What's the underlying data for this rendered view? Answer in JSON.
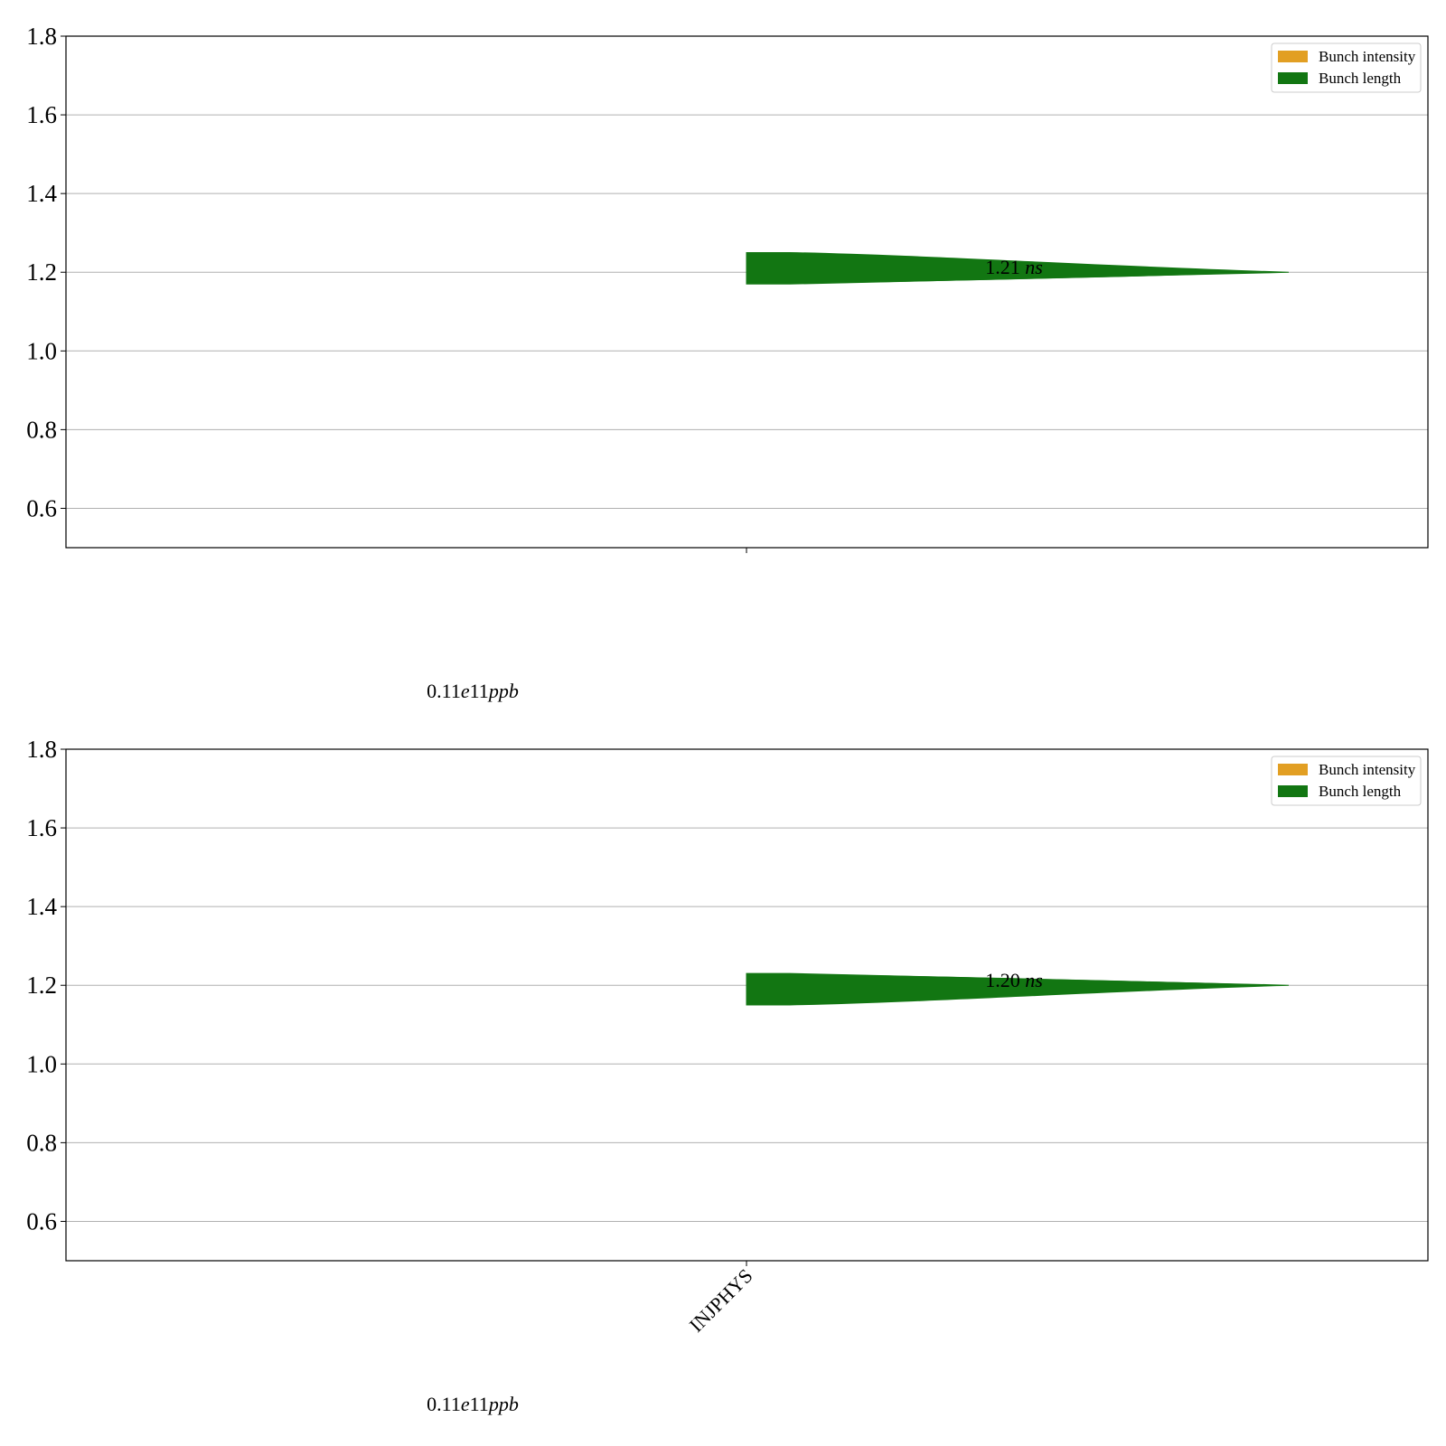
{
  "chart_data": [
    {
      "type": "violin",
      "title": "",
      "xlabel": "",
      "ylabel": "",
      "ylim": [
        0.5,
        1.8
      ],
      "yticks": [
        0.6,
        0.8,
        1.0,
        1.2,
        1.4,
        1.6,
        1.8
      ],
      "grid": true,
      "legend": {
        "placement": "top-right",
        "entries": [
          {
            "name": "Bunch intensity",
            "color": "#e29f23"
          },
          {
            "name": "Bunch length",
            "color": "#127612"
          }
        ]
      },
      "categories": [
        ""
      ],
      "series": [
        {
          "name": "Bunch length",
          "color": "#127612",
          "side": "right",
          "y_min": 1.17,
          "y_max": 1.25,
          "y_peak": 1.2,
          "label": "1.21 ns"
        }
      ],
      "intensity_annotation": "0.11e11ppb"
    },
    {
      "type": "violin",
      "title": "",
      "xlabel": "",
      "ylabel": "",
      "ylim": [
        0.5,
        1.8
      ],
      "yticks": [
        0.6,
        0.8,
        1.0,
        1.2,
        1.4,
        1.6,
        1.8
      ],
      "grid": true,
      "legend": {
        "placement": "top-right",
        "entries": [
          {
            "name": "Bunch intensity",
            "color": "#e29f23"
          },
          {
            "name": "Bunch length",
            "color": "#127612"
          }
        ]
      },
      "categories": [
        "INJPHYS"
      ],
      "series": [
        {
          "name": "Bunch length",
          "color": "#127612",
          "side": "right",
          "y_min": 1.15,
          "y_max": 1.23,
          "y_peak": 1.2,
          "label": "1.20 ns"
        }
      ],
      "intensity_annotation": "0.11e11ppb"
    }
  ]
}
